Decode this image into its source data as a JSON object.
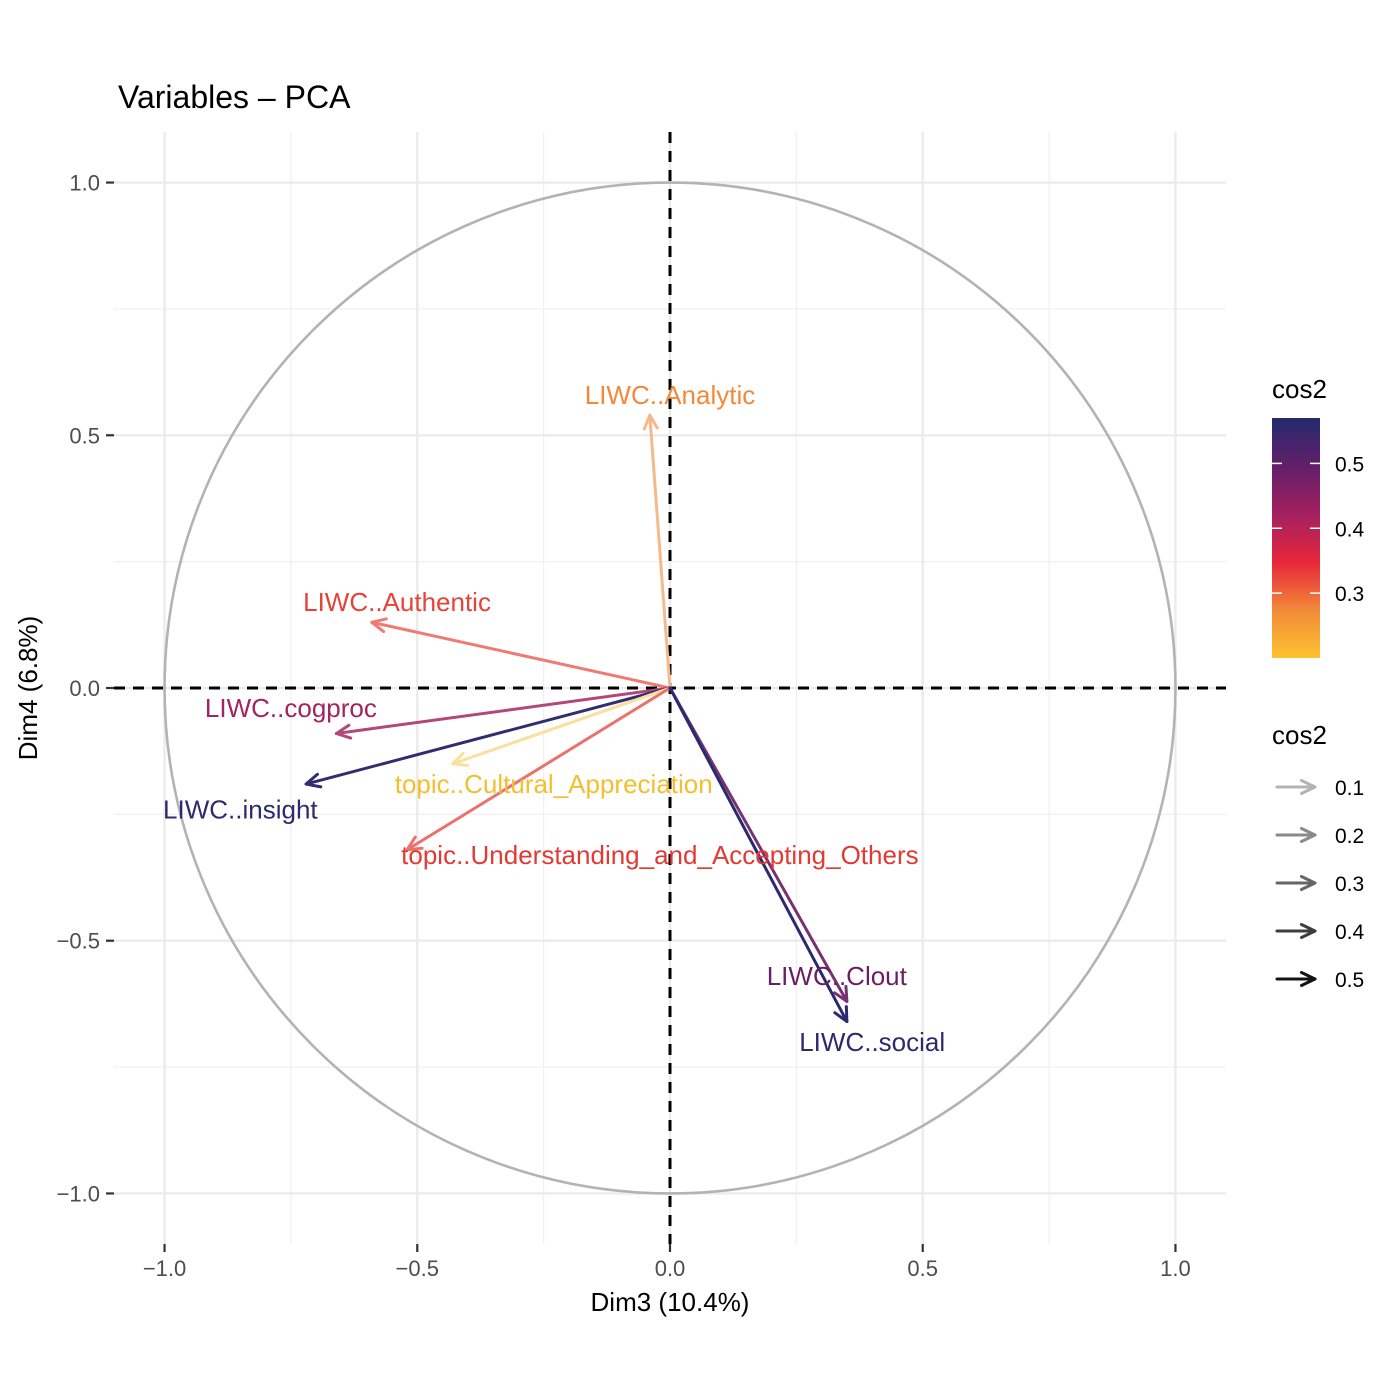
{
  "chart_data": {
    "type": "scatter",
    "subtype": "pca-variable-correlation-circle",
    "title": "Variables – PCA",
    "xlabel": "Dim3 (10.4%)",
    "ylabel": "Dim4 (6.8%)",
    "xlim": [
      -1.1,
      1.1
    ],
    "ylim": [
      -1.1,
      1.1
    ],
    "x_ticks": [
      -1.0,
      -0.5,
      0.0,
      0.5,
      1.0
    ],
    "x_tick_labels": [
      "−1.0",
      "−0.5",
      "0.0",
      "0.5",
      "1.0"
    ],
    "y_ticks": [
      1.0,
      0.5,
      0.0,
      -0.5,
      -1.0
    ],
    "y_tick_labels": [
      "1.0",
      "0.5",
      "0.0",
      "−0.5",
      "−1.0"
    ],
    "grid": true,
    "unit_circle": true,
    "variables": [
      {
        "name": "LIWC..Analytic",
        "x": -0.04,
        "y": 0.54,
        "cos2": 0.29,
        "color": "#f08a3a",
        "label_x": 0.0,
        "label_y": 0.58
      },
      {
        "name": "LIWC..Authentic",
        "x": -0.59,
        "y": 0.13,
        "cos2": 0.36,
        "color": "#e8413a",
        "label_x": -0.54,
        "label_y": 0.17
      },
      {
        "name": "LIWC..cogproc",
        "x": -0.66,
        "y": -0.09,
        "cos2": 0.45,
        "color": "#a3245f",
        "label_x": -0.75,
        "label_y": -0.04
      },
      {
        "name": "LIWC..insight",
        "x": -0.72,
        "y": -0.19,
        "cos2": 0.55,
        "color": "#2d2a6e",
        "label_x": -0.85,
        "label_y": -0.24
      },
      {
        "name": "topic..Cultural_Appreciation",
        "x": -0.43,
        "y": -0.15,
        "cos2": 0.21,
        "color": "#f5be2e",
        "label_x": -0.23,
        "label_y": -0.19
      },
      {
        "name": "topic..Understanding_and_Accepting_Others",
        "x": -0.52,
        "y": -0.32,
        "cos2": 0.37,
        "color": "#e23a33",
        "label_x": -0.02,
        "label_y": -0.33
      },
      {
        "name": "LIWC..Clout",
        "x": 0.35,
        "y": -0.62,
        "cos2": 0.5,
        "color": "#6a1f63",
        "label_x": 0.33,
        "label_y": -0.57
      },
      {
        "name": "LIWC..social",
        "x": 0.35,
        "y": -0.66,
        "cos2": 0.56,
        "color": "#2b2a6f",
        "label_x": 0.4,
        "label_y": -0.7
      }
    ],
    "legend": {
      "color": {
        "title": "cos2",
        "ticks": [
          "0.3",
          "0.4",
          "0.5"
        ],
        "tick_values": [
          0.3,
          0.4,
          0.5
        ],
        "range": [
          0.2,
          0.57
        ],
        "colors": [
          "#fcc22e",
          "#f28a3a",
          "#e8263a",
          "#a3205f",
          "#611f6a",
          "#252a6d"
        ]
      },
      "line": {
        "title": "cos2",
        "entries": [
          "0.1",
          "0.2",
          "0.3",
          "0.4",
          "0.5"
        ],
        "values": [
          0.1,
          0.2,
          0.3,
          0.4,
          0.5
        ],
        "colors": [
          "#b3b3b3",
          "#8a8a8a",
          "#666666",
          "#3d3d3d",
          "#141414"
        ]
      },
      "placement": "right"
    }
  }
}
